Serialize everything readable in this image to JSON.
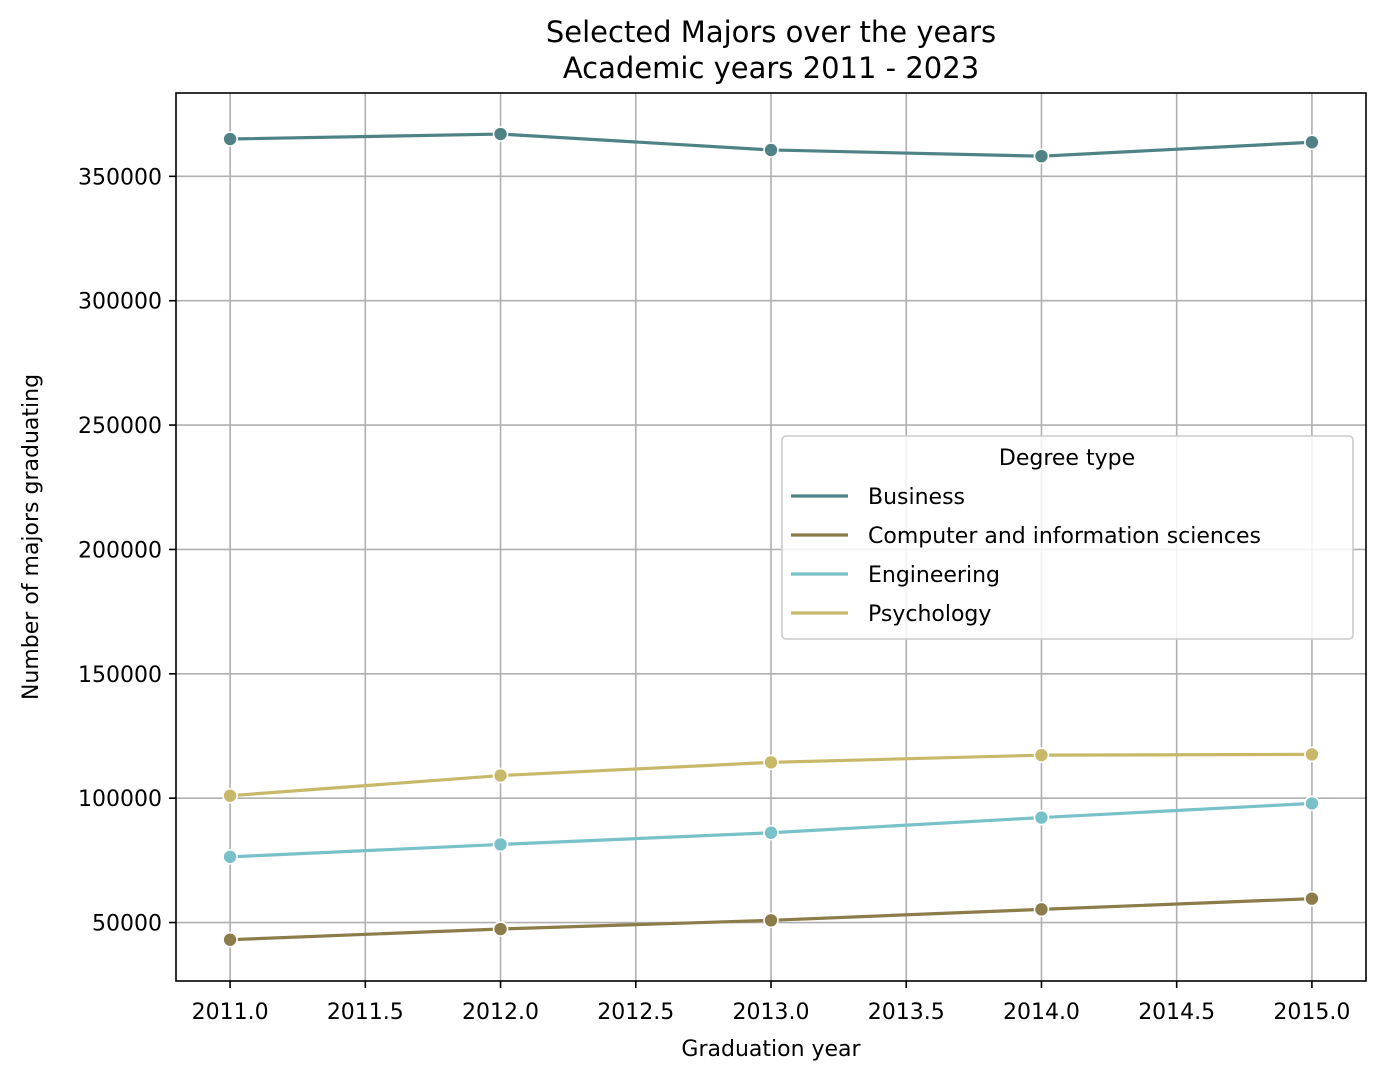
{
  "chart_data": {
    "type": "line",
    "title": "Selected Majors over the years",
    "subtitle": "Academic years 2011 - 2023",
    "xlabel": "Graduation year",
    "ylabel": "Number of majors graduating",
    "x": [
      2011,
      2012,
      2013,
      2014,
      2015
    ],
    "xlim": [
      2010.8,
      2015.2
    ],
    "ylim": [
      26500,
      383500
    ],
    "x_ticks": [
      "2011.0",
      "2011.5",
      "2012.0",
      "2012.5",
      "2013.0",
      "2013.5",
      "2014.0",
      "2014.5",
      "2015.0"
    ],
    "y_ticks": [
      "50000",
      "100000",
      "150000",
      "200000",
      "250000",
      "300000",
      "350000"
    ],
    "grid": true,
    "legend": {
      "title": "Degree type",
      "placement": "center-right"
    },
    "series": [
      {
        "name": "Business",
        "color": "#4e8285",
        "values": [
          365000,
          367000,
          360600,
          358100,
          363700
        ]
      },
      {
        "name": "Computer and information sciences",
        "color": "#8b7c4a",
        "values": [
          43100,
          47400,
          50900,
          55300,
          59600
        ]
      },
      {
        "name": "Engineering",
        "color": "#78c1c8",
        "values": [
          76400,
          81400,
          86100,
          92200,
          97900
        ]
      },
      {
        "name": "Psychology",
        "color": "#c8b96a",
        "values": [
          101000,
          109100,
          114400,
          117300,
          117600
        ]
      }
    ]
  }
}
